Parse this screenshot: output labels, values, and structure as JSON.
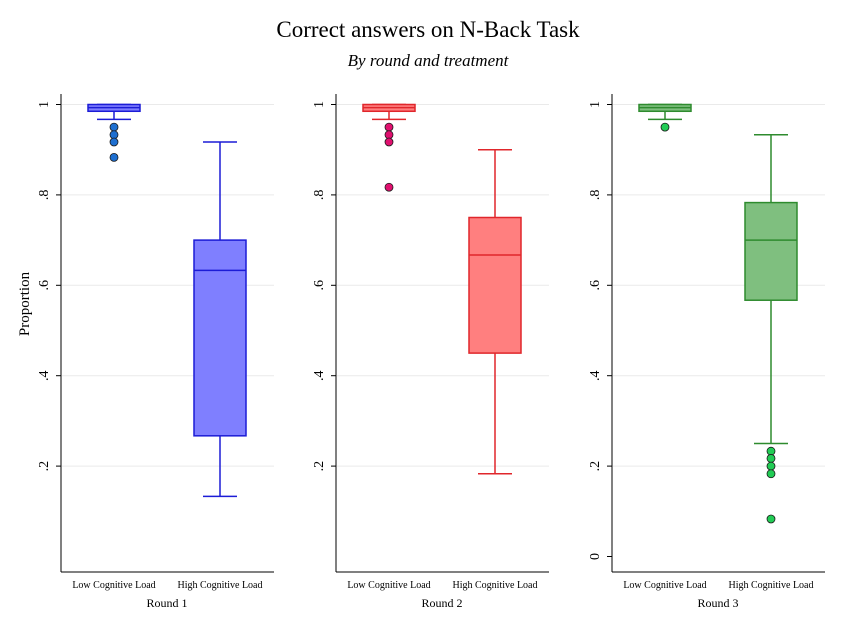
{
  "chart_data": {
    "type": "box",
    "title": "Correct answers on N-Back Task",
    "subtitle": "By round and treatment",
    "ylabel": "Proportion",
    "ylim": [
      0,
      1
    ],
    "ytick_labels": [
      "0",
      ".2",
      ".4",
      ".6",
      ".8",
      "1"
    ],
    "ytick_values": [
      0,
      0.2,
      0.4,
      0.6,
      0.8,
      1
    ],
    "categories": [
      "Low Cognitive Load",
      "High Cognitive Load"
    ],
    "grid": true,
    "panels": [
      {
        "label": "Round 1",
        "color": "#1c1cd6",
        "box_fill": "#7f7fff",
        "outlier_fill": "#1e6fd0",
        "ytick_labels": [
          ".2",
          ".4",
          ".6",
          ".8",
          "1"
        ],
        "boxes": [
          {
            "category": "Low Cognitive Load",
            "whisker_low": 0.967,
            "q1": 0.985,
            "median": 0.993,
            "q3": 1.0,
            "whisker_high": 1.0,
            "outliers": [
              0.95,
              0.933,
              0.917,
              0.883
            ]
          },
          {
            "category": "High Cognitive Load",
            "whisker_low": 0.133,
            "q1": 0.267,
            "median": 0.633,
            "q3": 0.7,
            "whisker_high": 0.917,
            "outliers": []
          }
        ]
      },
      {
        "label": "Round 2",
        "color": "#e0262b",
        "box_fill": "#ff7f7f",
        "outlier_fill": "#e0106f",
        "ytick_labels": [
          ".2",
          ".4",
          ".6",
          ".8",
          "1"
        ],
        "boxes": [
          {
            "category": "Low Cognitive Load",
            "whisker_low": 0.967,
            "q1": 0.985,
            "median": 0.993,
            "q3": 1.0,
            "whisker_high": 1.0,
            "outliers": [
              0.95,
              0.933,
              0.917,
              0.817
            ]
          },
          {
            "category": "High Cognitive Load",
            "whisker_low": 0.183,
            "q1": 0.45,
            "median": 0.667,
            "q3": 0.75,
            "whisker_high": 0.9,
            "outliers": []
          }
        ]
      },
      {
        "label": "Round 3",
        "color": "#2e8b2e",
        "box_fill": "#7fbf7f",
        "outlier_fill": "#22cc55",
        "ytick_labels": [
          "0",
          ".2",
          ".4",
          ".6",
          ".8",
          "1"
        ],
        "boxes": [
          {
            "category": "Low Cognitive Load",
            "whisker_low": 0.967,
            "q1": 0.985,
            "median": 0.993,
            "q3": 1.0,
            "whisker_high": 1.0,
            "outliers": [
              0.95
            ]
          },
          {
            "category": "High Cognitive Load",
            "whisker_low": 0.25,
            "q1": 0.567,
            "median": 0.7,
            "q3": 0.783,
            "whisker_high": 0.933,
            "outliers": [
              0.233,
              0.217,
              0.2,
              0.183,
              0.083
            ]
          }
        ]
      }
    ]
  }
}
